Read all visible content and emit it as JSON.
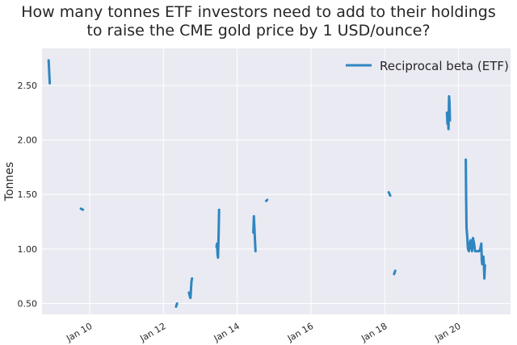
{
  "chart_data": {
    "type": "line",
    "title_lines": [
      "How many tonnes ETF investors need to add to their holdings",
      "to raise the CME gold price by 1 USD/ounce?"
    ],
    "ylabel": "Tonnes",
    "xlabel": "",
    "x_scale": "date",
    "xlim": [
      "2008-09-15",
      "2021-06-01"
    ],
    "ylim": [
      0.4,
      2.84
    ],
    "yticks": [
      0.5,
      1.0,
      1.5,
      2.0,
      2.5
    ],
    "ytick_labels": [
      "0.50",
      "1.00",
      "1.50",
      "2.00",
      "2.50"
    ],
    "xticks": [
      "2010-01-01",
      "2012-01-01",
      "2014-01-01",
      "2016-01-01",
      "2018-01-01",
      "2020-01-01"
    ],
    "xtick_labels": [
      "Jan 10",
      "Jan 12",
      "Jan 14",
      "Jan 16",
      "Jan 18",
      "Jan 20"
    ],
    "grid": true,
    "legend_position": "top-right",
    "series": [
      {
        "name": "Reciprocal beta (ETF)",
        "color": "#2f86c0",
        "segments": [
          [
            [
              "2008-11-20",
              2.73
            ],
            [
              "2008-12-01",
              2.52
            ]
          ],
          [
            [
              "2009-10-05",
              1.37
            ],
            [
              "2009-10-25",
              1.36
            ]
          ],
          [
            [
              "2012-05-05",
              0.47
            ],
            [
              "2012-05-15",
              0.5
            ]
          ],
          [
            [
              "2012-09-10",
              0.6
            ],
            [
              "2012-09-20",
              0.56
            ],
            [
              "2012-09-25",
              0.55
            ],
            [
              "2012-10-05",
              0.7
            ],
            [
              "2012-10-10",
              0.73
            ]
          ],
          [
            [
              "2013-06-10",
              1.02
            ],
            [
              "2013-06-15",
              1.05
            ],
            [
              "2013-06-20",
              0.95
            ],
            [
              "2013-06-25",
              0.92
            ],
            [
              "2013-07-01",
              1.15
            ],
            [
              "2013-07-05",
              1.36
            ]
          ],
          [
            [
              "2014-06-10",
              1.15
            ],
            [
              "2014-06-15",
              1.3
            ],
            [
              "2014-06-20",
              1.2
            ],
            [
              "2014-06-25",
              1.1
            ],
            [
              "2014-07-01",
              0.98
            ]
          ],
          [
            [
              "2014-10-15",
              1.44
            ],
            [
              "2014-10-25",
              1.45
            ]
          ],
          [
            [
              "2018-02-10",
              1.52
            ],
            [
              "2018-02-25",
              1.49
            ]
          ],
          [
            [
              "2018-04-05",
              0.77
            ],
            [
              "2018-04-15",
              0.8
            ]
          ],
          [
            [
              "2019-09-10",
              2.25
            ],
            [
              "2019-09-15",
              2.15
            ],
            [
              "2019-09-20",
              2.2
            ],
            [
              "2019-09-25",
              2.1
            ],
            [
              "2019-10-01",
              2.4
            ],
            [
              "2019-10-05",
              2.35
            ],
            [
              "2019-10-10",
              2.18
            ]
          ],
          [
            [
              "2020-03-15",
              1.82
            ],
            [
              "2020-03-18",
              1.5
            ],
            [
              "2020-03-22",
              1.2
            ],
            [
              "2020-03-28",
              1.12
            ],
            [
              "2020-04-05",
              1.0
            ],
            [
              "2020-04-15",
              0.98
            ],
            [
              "2020-04-22",
              1.05
            ],
            [
              "2020-05-01",
              1.08
            ],
            [
              "2020-05-08",
              1.02
            ],
            [
              "2020-05-15",
              0.98
            ],
            [
              "2020-05-25",
              1.1
            ],
            [
              "2020-06-05",
              1.05
            ],
            [
              "2020-06-15",
              0.98
            ],
            [
              "2020-06-25",
              0.98
            ],
            [
              "2020-07-10",
              0.98
            ],
            [
              "2020-07-25",
              0.98
            ],
            [
              "2020-08-05",
              1.0
            ],
            [
              "2020-08-15",
              1.05
            ],
            [
              "2020-08-20",
              0.9
            ],
            [
              "2020-08-25",
              0.86
            ],
            [
              "2020-09-05",
              0.93
            ],
            [
              "2020-09-10",
              0.86
            ],
            [
              "2020-09-15",
              0.73
            ],
            [
              "2020-09-20",
              0.85
            ]
          ]
        ]
      }
    ]
  }
}
